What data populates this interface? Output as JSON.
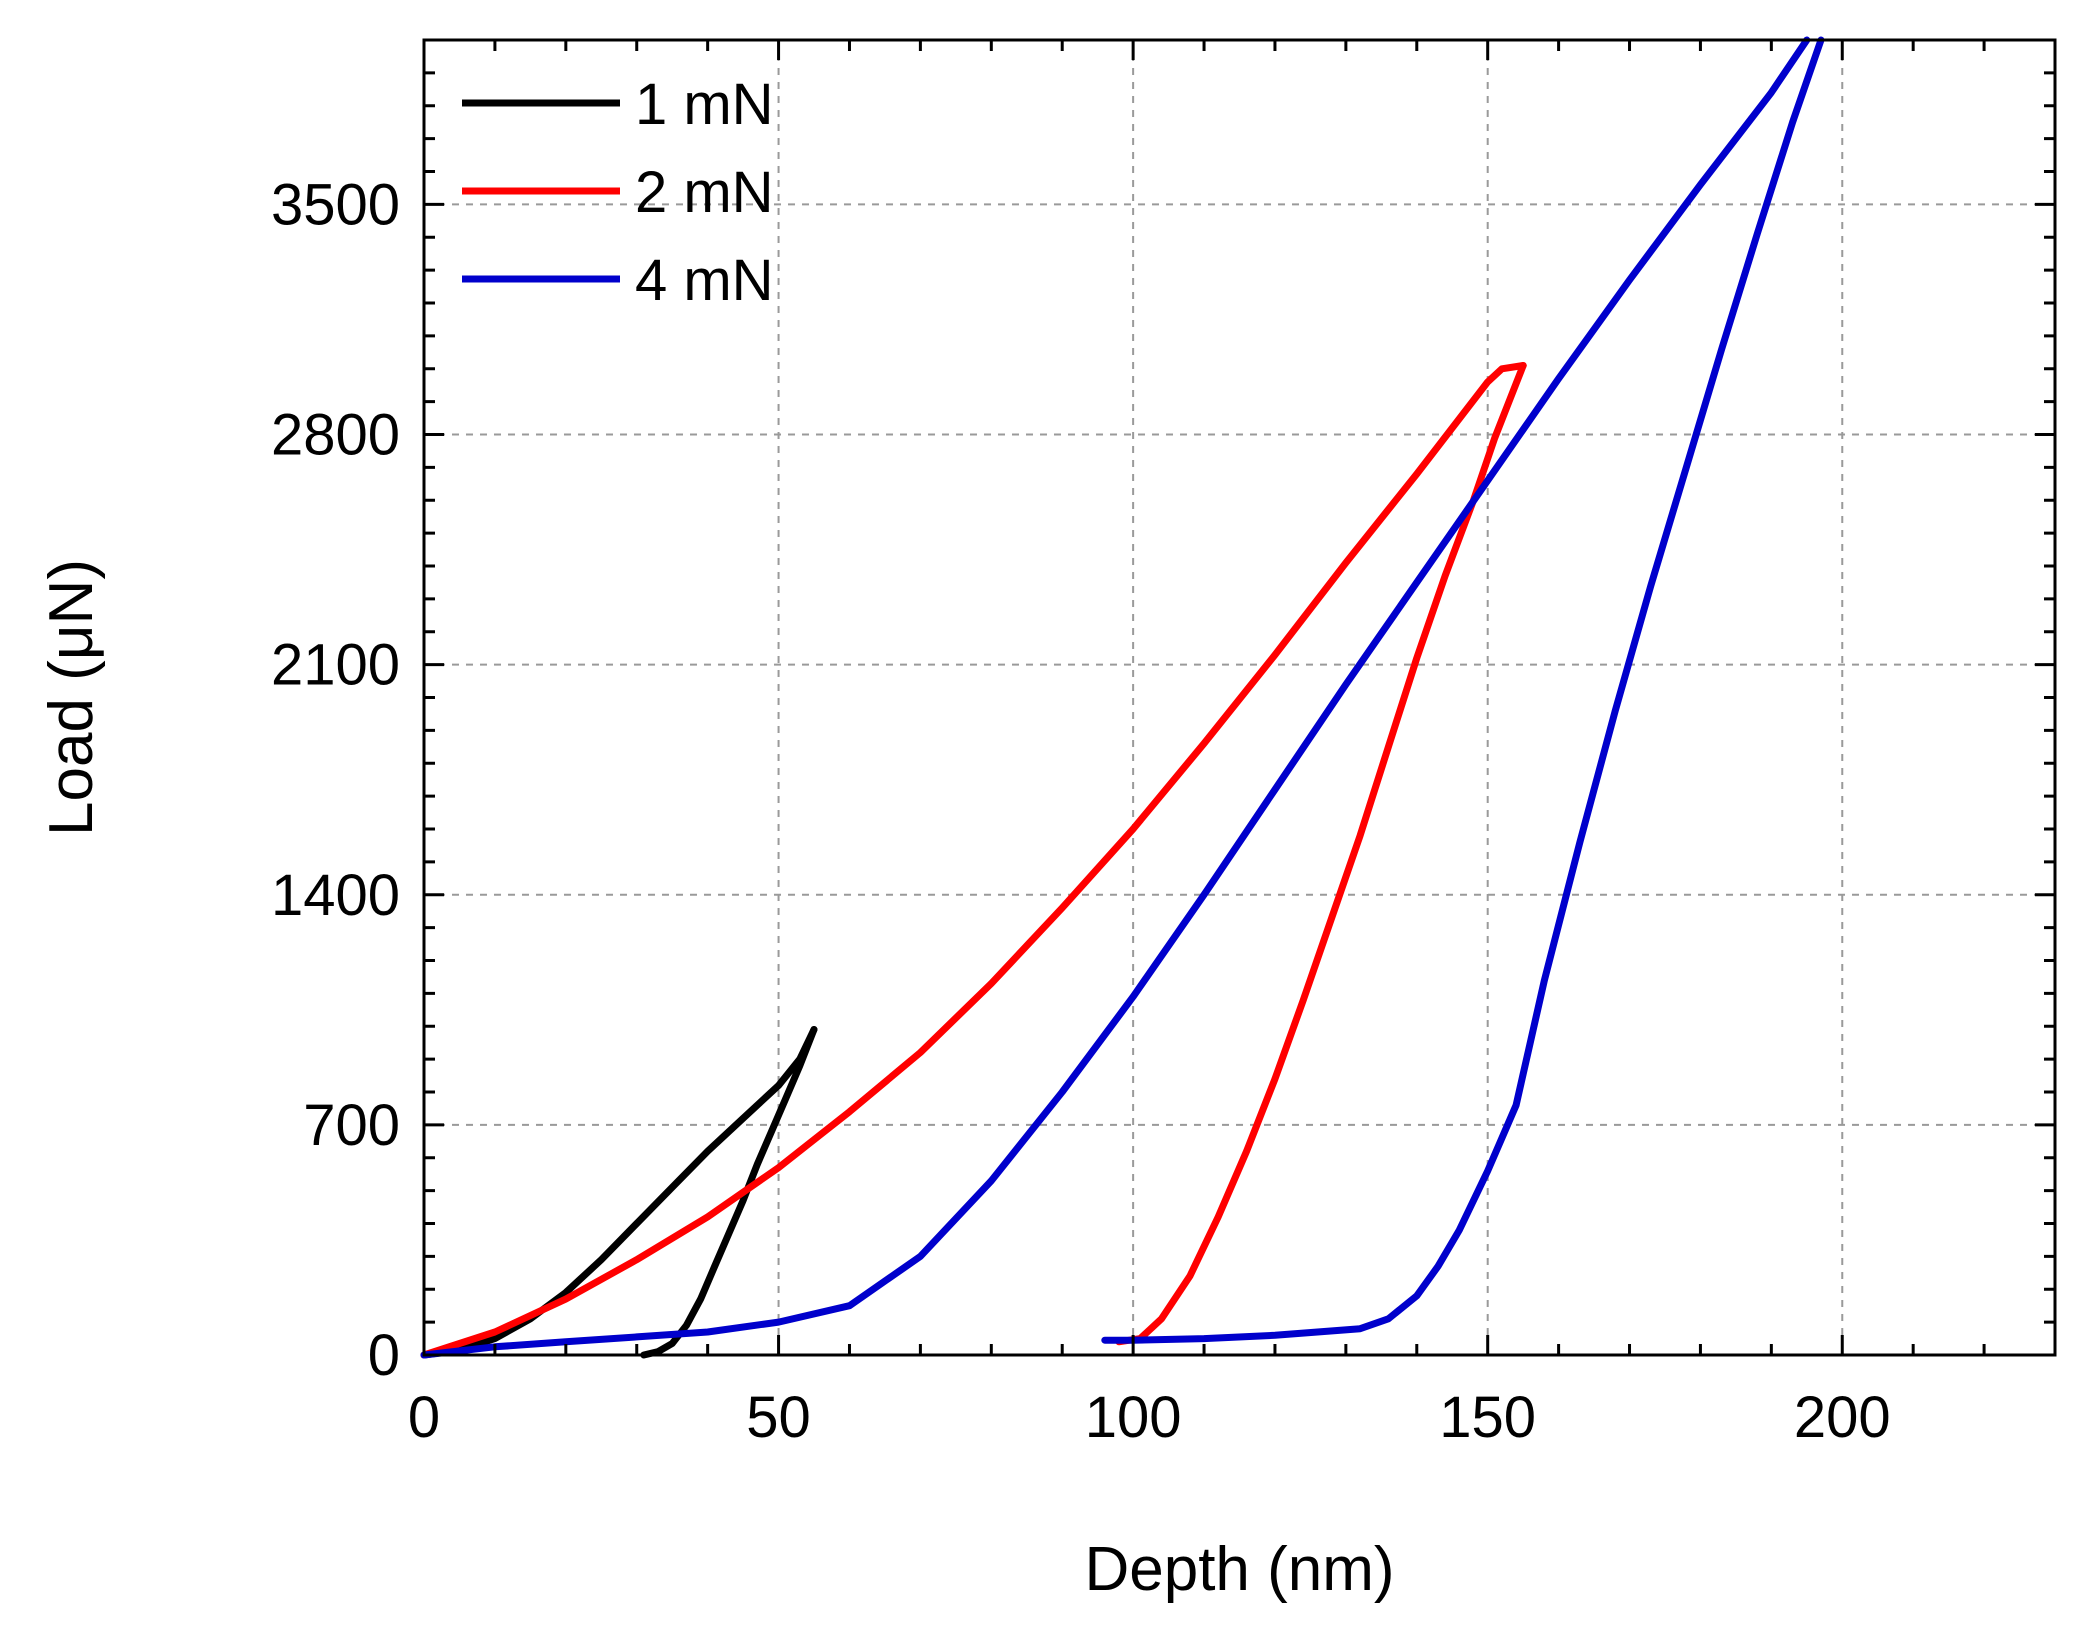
{
  "chart_data": {
    "type": "line",
    "title": "",
    "xlabel": "Depth (nm)",
    "ylabel": "Load (μN)",
    "xlim": [
      0,
      230
    ],
    "ylim": [
      0,
      4000
    ],
    "x_ticks": [
      0,
      50,
      100,
      150,
      200
    ],
    "y_ticks": [
      0,
      700,
      1400,
      2100,
      2800,
      3500
    ],
    "x_tick_labels": [
      "0",
      "50",
      "100",
      "150",
      "200"
    ],
    "y_tick_labels": [
      "0",
      "700",
      "1400",
      "2100",
      "2800",
      "3500"
    ],
    "grid": true,
    "legend_position": "top-left",
    "series": [
      {
        "name": "1 mN",
        "color": "#000000",
        "loading": [
          [
            0,
            0
          ],
          [
            5,
            15
          ],
          [
            10,
            50
          ],
          [
            15,
            110
          ],
          [
            20,
            190
          ],
          [
            25,
            290
          ],
          [
            30,
            400
          ],
          [
            35,
            510
          ],
          [
            40,
            620
          ],
          [
            45,
            720
          ],
          [
            50,
            820
          ],
          [
            53,
            900
          ],
          [
            55,
            990
          ]
        ],
        "unloading": [
          [
            55,
            990
          ],
          [
            53,
            880
          ],
          [
            51,
            780
          ],
          [
            49,
            680
          ],
          [
            47,
            580
          ],
          [
            45,
            470
          ],
          [
            43,
            370
          ],
          [
            41,
            270
          ],
          [
            39,
            170
          ],
          [
            37,
            90
          ],
          [
            35,
            35
          ],
          [
            33,
            10
          ],
          [
            31,
            0
          ]
        ]
      },
      {
        "name": "2 mN",
        "color": "#ff0000",
        "loading": [
          [
            0,
            0
          ],
          [
            10,
            70
          ],
          [
            20,
            170
          ],
          [
            30,
            290
          ],
          [
            40,
            420
          ],
          [
            50,
            570
          ],
          [
            60,
            740
          ],
          [
            70,
            920
          ],
          [
            80,
            1130
          ],
          [
            90,
            1360
          ],
          [
            100,
            1600
          ],
          [
            110,
            1860
          ],
          [
            120,
            2130
          ],
          [
            130,
            2410
          ],
          [
            140,
            2680
          ],
          [
            150,
            2960
          ],
          [
            152,
            3000
          ],
          [
            155,
            3010
          ]
        ],
        "unloading": [
          [
            155,
            3010
          ],
          [
            153,
            2900
          ],
          [
            151,
            2790
          ],
          [
            148,
            2600
          ],
          [
            144,
            2370
          ],
          [
            140,
            2120
          ],
          [
            136,
            1850
          ],
          [
            132,
            1580
          ],
          [
            128,
            1330
          ],
          [
            124,
            1080
          ],
          [
            120,
            840
          ],
          [
            116,
            620
          ],
          [
            112,
            420
          ],
          [
            108,
            240
          ],
          [
            104,
            110
          ],
          [
            101,
            50
          ],
          [
            98,
            40
          ]
        ]
      },
      {
        "name": "4 mN",
        "color": "#0000cc",
        "loading": [
          [
            0,
            0
          ],
          [
            10,
            25
          ],
          [
            20,
            40
          ],
          [
            30,
            55
          ],
          [
            40,
            70
          ],
          [
            50,
            100
          ],
          [
            60,
            150
          ],
          [
            70,
            300
          ],
          [
            80,
            530
          ],
          [
            90,
            800
          ],
          [
            100,
            1090
          ],
          [
            110,
            1400
          ],
          [
            120,
            1720
          ],
          [
            130,
            2040
          ],
          [
            140,
            2350
          ],
          [
            150,
            2660
          ],
          [
            160,
            2970
          ],
          [
            170,
            3270
          ],
          [
            180,
            3560
          ],
          [
            190,
            3840
          ],
          [
            195,
            4000
          ]
        ],
        "unloading": [
          [
            197,
            4000
          ],
          [
            193,
            3750
          ],
          [
            188,
            3410
          ],
          [
            183,
            3060
          ],
          [
            178,
            2700
          ],
          [
            173,
            2340
          ],
          [
            168,
            1960
          ],
          [
            163,
            1560
          ],
          [
            158,
            1140
          ],
          [
            154,
            760
          ],
          [
            150,
            560
          ],
          [
            146,
            380
          ],
          [
            143,
            270
          ],
          [
            140,
            180
          ],
          [
            136,
            110
          ],
          [
            132,
            80
          ],
          [
            120,
            60
          ],
          [
            110,
            50
          ],
          [
            100,
            45
          ],
          [
            96,
            45
          ]
        ]
      }
    ]
  }
}
